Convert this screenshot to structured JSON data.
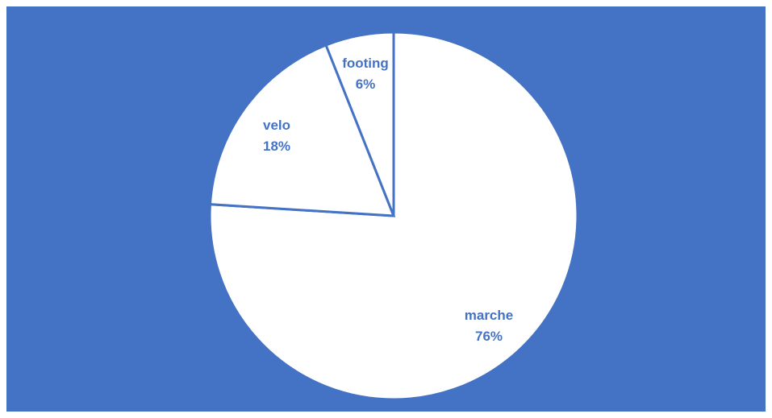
{
  "colors": {
    "background": "#4472C4",
    "slice_fill": "#FFFFFF",
    "slice_stroke": "#4472C4",
    "label": "#4472C4"
  },
  "chart_data": {
    "type": "pie",
    "title": "",
    "start_angle_deg": 0,
    "direction": "clockwise",
    "categories": [
      "marche",
      "velo",
      "footing"
    ],
    "values": [
      76,
      18,
      6
    ],
    "labels": [
      {
        "category": "marche",
        "percent": "76%"
      },
      {
        "category": "velo",
        "percent": "18%"
      },
      {
        "category": "footing",
        "percent": "6%"
      }
    ],
    "legend": "none",
    "data_labels": "category and percentage"
  }
}
